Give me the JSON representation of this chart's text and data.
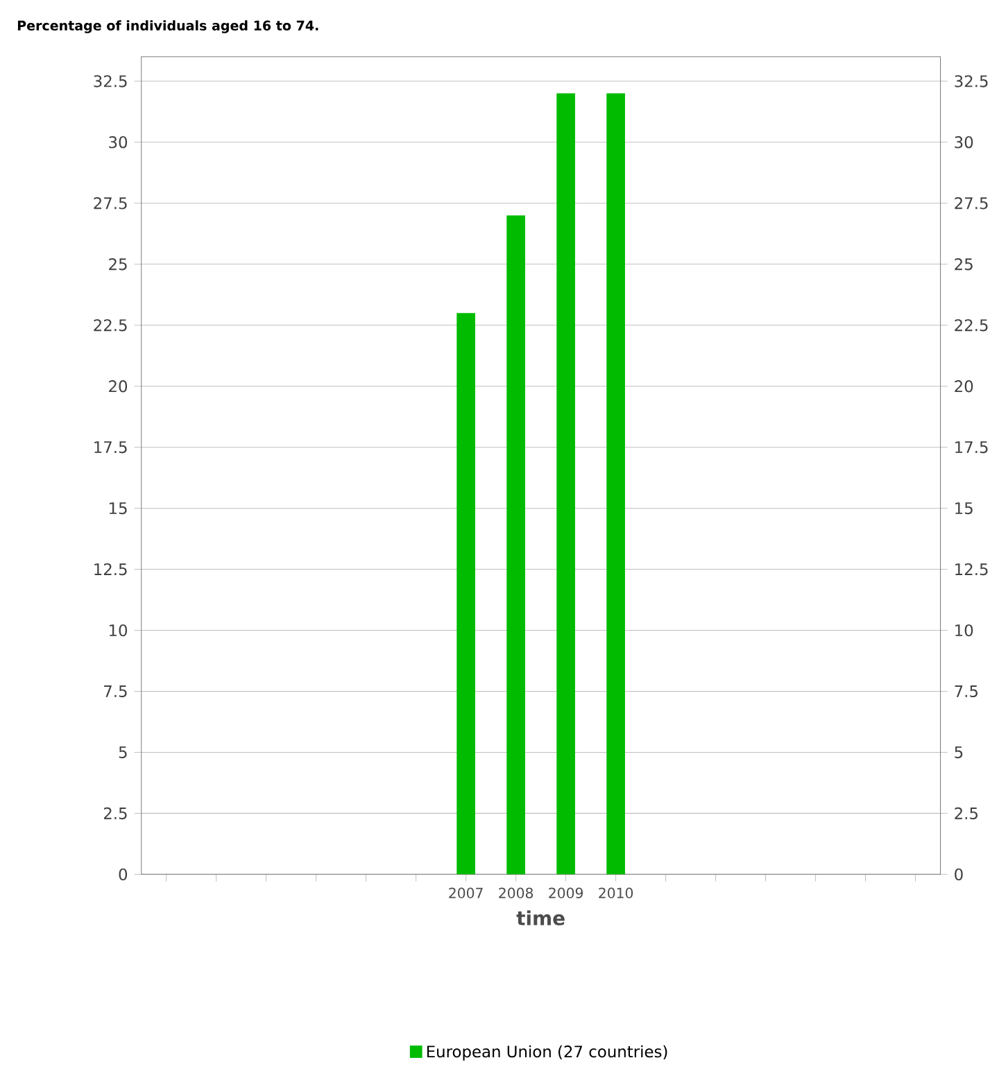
{
  "chart_data": {
    "type": "bar",
    "title": "Percentage of individuals aged 16 to 74.",
    "xlabel": "time",
    "categories": [
      null,
      null,
      null,
      null,
      null,
      null,
      "2007",
      "2008",
      "2009",
      "2010",
      null,
      null,
      null,
      null,
      null,
      null
    ],
    "series": [
      {
        "name": "European Union (27 countries)",
        "color": "#00bb00",
        "values": [
          null,
          null,
          null,
          null,
          null,
          null,
          23,
          27,
          32,
          32,
          null,
          null,
          null,
          null,
          null,
          null
        ]
      }
    ],
    "ylim": [
      0,
      33.5
    ],
    "yticks": [
      0,
      2.5,
      5,
      7.5,
      10,
      12.5,
      15,
      17.5,
      20,
      22.5,
      25,
      27.5,
      30,
      32.5
    ],
    "y2lim": [
      0,
      33.5
    ],
    "y2ticks": [
      0,
      2.5,
      5,
      7.5,
      10,
      12.5,
      15,
      17.5,
      20,
      22.5,
      25,
      27.5,
      30,
      32.5
    ],
    "grid": "y",
    "legend": "bottom"
  }
}
